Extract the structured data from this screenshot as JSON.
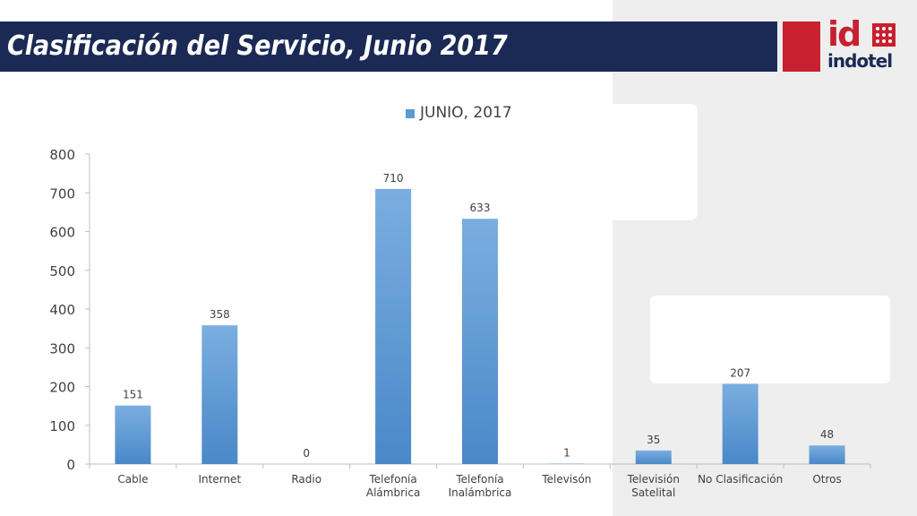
{
  "slide": {
    "title": "Clasificación del Servicio, Junio 2017"
  },
  "logo": {
    "mark": "id",
    "name": "indotel",
    "accent_color": "#c8202f",
    "brand_color": "#1b2955"
  },
  "chart_data": {
    "type": "bar",
    "title": "",
    "xlabel": "",
    "ylabel": "",
    "ylim": [
      0,
      800
    ],
    "yticks": [
      0,
      100,
      200,
      300,
      400,
      500,
      600,
      700,
      800
    ],
    "grid": false,
    "legend_position": "top",
    "categories": [
      [
        "Cable"
      ],
      [
        "Internet"
      ],
      [
        "Radio"
      ],
      [
        "Telefonía",
        "Alámbrica"
      ],
      [
        "Telefonía",
        "Inalámbrica"
      ],
      [
        "Televisón"
      ],
      [
        "Televisión",
        "Satelital"
      ],
      [
        "No Clasificación"
      ],
      [
        "Otros"
      ]
    ],
    "series": [
      {
        "name": "JUNIO, 2017",
        "color": "#5b9bd5",
        "values": [
          151,
          358,
          0,
          710,
          633,
          1,
          35,
          207,
          48
        ]
      }
    ],
    "data_labels": true
  }
}
